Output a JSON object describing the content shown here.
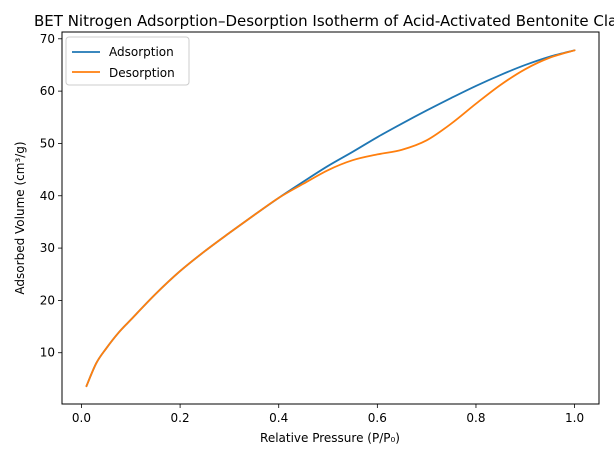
{
  "chart_data": {
    "type": "line",
    "title": "BET Nitrogen Adsorption–Desorption Isotherm of Acid-Activated Bentonite Clay",
    "xlabel": "Relative Pressure (P/P₀)",
    "ylabel": "Adsorbed Volume (cm³/g)",
    "xlim": [
      -0.0395,
      1.0495
    ],
    "ylim": [
      0.2,
      71.3
    ],
    "xticks": [
      0.0,
      0.2,
      0.4,
      0.6,
      0.8,
      1.0
    ],
    "xtick_labels": [
      "0.0",
      "0.2",
      "0.4",
      "0.6",
      "0.8",
      "1.0"
    ],
    "yticks": [
      10,
      20,
      30,
      40,
      50,
      60,
      70
    ],
    "ytick_labels": [
      "10",
      "20",
      "30",
      "40",
      "50",
      "60",
      "70"
    ],
    "grid": false,
    "legend_position": "top-left",
    "series": [
      {
        "name": "Adsorption",
        "color": "#1f77b4",
        "x": [
          0.01,
          0.03,
          0.05,
          0.075,
          0.1,
          0.15,
          0.2,
          0.25,
          0.3,
          0.35,
          0.4,
          0.45,
          0.5,
          0.55,
          0.6,
          0.65,
          0.7,
          0.75,
          0.8,
          0.85,
          0.9,
          0.95,
          1.0
        ],
        "y": [
          3.6,
          8.0,
          10.8,
          13.8,
          16.3,
          21.2,
          25.6,
          29.4,
          32.9,
          36.3,
          39.6,
          42.7,
          45.7,
          48.4,
          51.2,
          53.8,
          56.3,
          58.7,
          61.0,
          63.1,
          65.0,
          66.6,
          67.8
        ]
      },
      {
        "name": "Desorption",
        "color": "#ff7f0e",
        "x": [
          0.01,
          0.03,
          0.05,
          0.075,
          0.1,
          0.15,
          0.2,
          0.25,
          0.3,
          0.35,
          0.4,
          0.45,
          0.5,
          0.55,
          0.6,
          0.65,
          0.7,
          0.75,
          0.8,
          0.85,
          0.9,
          0.95,
          1.0
        ],
        "y": [
          3.6,
          8.0,
          10.8,
          13.8,
          16.3,
          21.2,
          25.6,
          29.4,
          32.9,
          36.3,
          39.6,
          42.3,
          44.9,
          46.8,
          47.9,
          48.8,
          50.6,
          53.8,
          57.6,
          61.2,
          64.2,
          66.4,
          67.8
        ]
      }
    ]
  }
}
